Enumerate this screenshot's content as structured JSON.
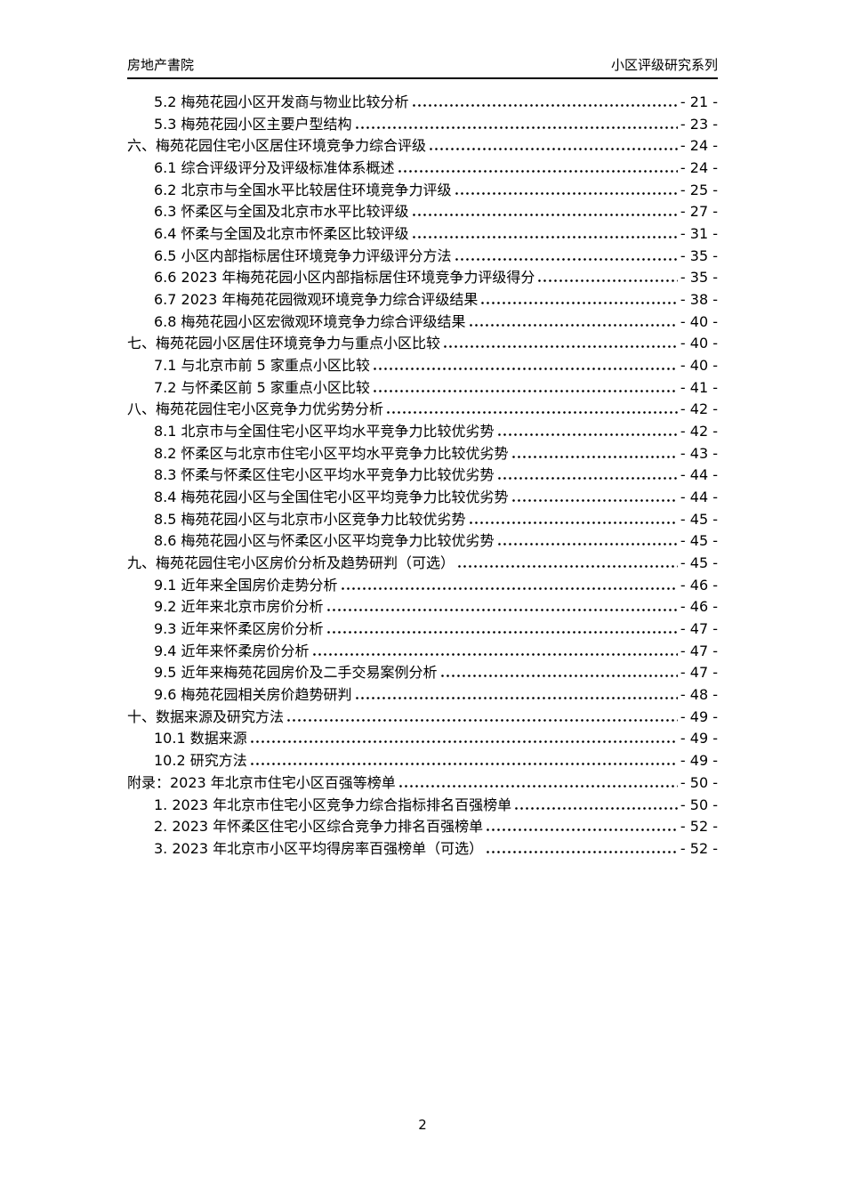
{
  "header": {
    "left": "房地产書院",
    "right": "小区评级研究系列"
  },
  "toc": {
    "entries": [
      {
        "level": 2,
        "text": "5.2 梅苑花园小区开发商与物业比较分析",
        "page": "- 21 -"
      },
      {
        "level": 2,
        "text": "5.3 梅苑花园小区主要户型结构",
        "page": "- 23 -"
      },
      {
        "level": 1,
        "text": "六、梅苑花园住宅小区居住环境竞争力综合评级",
        "page": "- 24 -"
      },
      {
        "level": 2,
        "text": "6.1 综合评级评分及评级标准体系概述",
        "page": "- 24 -"
      },
      {
        "level": 2,
        "text": "6.2 北京市与全国水平比较居住环境竞争力评级",
        "page": "- 25 -"
      },
      {
        "level": 2,
        "text": "6.3 怀柔区与全国及北京市水平比较评级",
        "page": "- 27 -"
      },
      {
        "level": 2,
        "text": "6.4 怀柔与全国及北京市怀柔区比较评级",
        "page": "- 31 -"
      },
      {
        "level": 2,
        "text": "6.5 小区内部指标居住环境竞争力评级评分方法",
        "page": "- 35 -"
      },
      {
        "level": 2,
        "text": "6.6 2023 年梅苑花园小区内部指标居住环境竞争力评级得分",
        "page": "- 35 -"
      },
      {
        "level": 2,
        "text": "6.7 2023 年梅苑花园微观环境竞争力综合评级结果",
        "page": "- 38 -"
      },
      {
        "level": 2,
        "text": "6.8 梅苑花园小区宏微观环境竞争力综合评级结果",
        "page": "- 40 -"
      },
      {
        "level": 1,
        "text": "七、梅苑花园小区居住环境竞争力与重点小区比较",
        "page": "- 40 -"
      },
      {
        "level": 2,
        "text": "7.1 与北京市前 5 家重点小区比较",
        "page": "- 40 -"
      },
      {
        "level": 2,
        "text": "7.2 与怀柔区前 5 家重点小区比较",
        "page": "- 41 -"
      },
      {
        "level": 1,
        "text": "八、梅苑花园住宅小区竞争力优劣势分析",
        "page": "- 42 -"
      },
      {
        "level": 2,
        "text": "8.1 北京市与全国住宅小区平均水平竞争力比较优劣势",
        "page": "- 42 -"
      },
      {
        "level": 2,
        "text": "8.2 怀柔区与北京市住宅小区平均水平竞争力比较优劣势",
        "page": "- 43 -"
      },
      {
        "level": 2,
        "text": "8.3 怀柔与怀柔区住宅小区平均水平竞争力比较优劣势",
        "page": "- 44 -"
      },
      {
        "level": 2,
        "text": "8.4 梅苑花园小区与全国住宅小区平均竞争力比较优劣势",
        "page": "- 44 -"
      },
      {
        "level": 2,
        "text": "8.5 梅苑花园小区与北京市小区竞争力比较优劣势",
        "page": "- 45 -"
      },
      {
        "level": 2,
        "text": "8.6 梅苑花园小区与怀柔区小区平均竞争力比较优劣势",
        "page": "- 45 -"
      },
      {
        "level": 1,
        "text": "九、梅苑花园住宅小区房价分析及趋势研判（可选）",
        "page": "- 45 -"
      },
      {
        "level": 2,
        "text": "9.1 近年来全国房价走势分析",
        "page": "- 46 -"
      },
      {
        "level": 2,
        "text": "9.2 近年来北京市房价分析",
        "page": "- 46 -"
      },
      {
        "level": 2,
        "text": "9.3 近年来怀柔区房价分析",
        "page": "- 47 -"
      },
      {
        "level": 2,
        "text": "9.4 近年来怀柔房价分析",
        "page": "- 47 -"
      },
      {
        "level": 2,
        "text": "9.5 近年来梅苑花园房价及二手交易案例分析",
        "page": "- 47 -"
      },
      {
        "level": 2,
        "text": "9.6 梅苑花园相关房价趋势研判",
        "page": "- 48 -"
      },
      {
        "level": 1,
        "text": "十、数据来源及研究方法",
        "page": "- 49 -"
      },
      {
        "level": 2,
        "text": "10.1 数据来源",
        "page": "- 49 -"
      },
      {
        "level": 2,
        "text": "10.2 研究方法",
        "page": "- 49 -"
      },
      {
        "level": 1,
        "text": "附录：2023 年北京市住宅小区百强等榜单",
        "page": "- 50 -"
      },
      {
        "level": 2,
        "text": "1. 2023 年北京市住宅小区竞争力综合指标排名百强榜单",
        "page": "- 50 -"
      },
      {
        "level": 2,
        "text": "2. 2023 年怀柔区住宅小区综合竞争力排名百强榜单",
        "page": "- 52 -"
      },
      {
        "level": 2,
        "text": "3. 2023 年北京市小区平均得房率百强榜单（可选）",
        "page": "- 52 -"
      }
    ]
  },
  "footer": {
    "page_number": "2"
  }
}
